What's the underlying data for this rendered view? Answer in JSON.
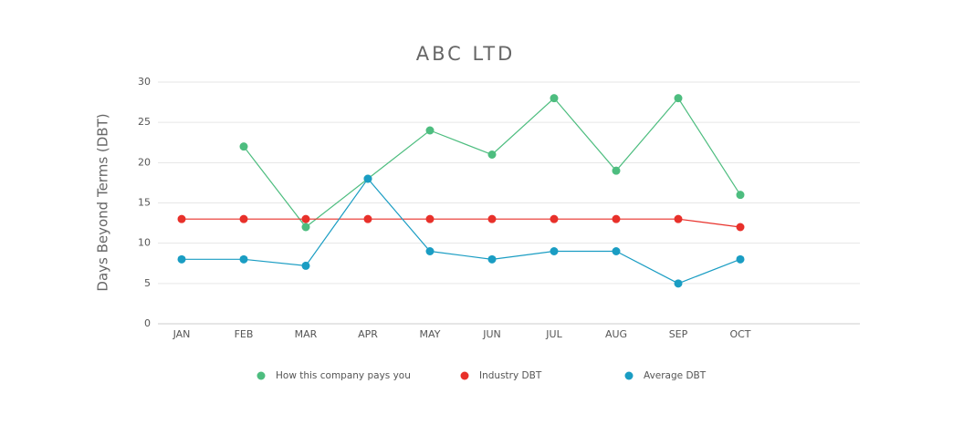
{
  "chart_data": {
    "type": "line",
    "title": "ABC LTD",
    "y_label": "Days Beyond Terms (DBT)",
    "categories": [
      "JAN",
      "FEB",
      "MAR",
      "APR",
      "MAY",
      "JUN",
      "JUL",
      "AUG",
      "SEP",
      "OCT"
    ],
    "series": [
      {
        "name": "How this company pays you",
        "color": "#4dbd7f",
        "values": [
          null,
          22,
          12,
          18,
          24,
          21,
          28,
          19,
          28,
          16
        ]
      },
      {
        "name": "Industry DBT",
        "color": "#e8302a",
        "values": [
          13,
          13,
          13,
          13,
          13,
          13,
          13,
          13,
          13,
          12
        ]
      },
      {
        "name": "Average DBT",
        "color": "#1a9dc3",
        "values": [
          8,
          8,
          7.2,
          18,
          9,
          8,
          9,
          9,
          5,
          8
        ]
      }
    ],
    "ylim": [
      0,
      30
    ],
    "yticks": [
      0,
      5,
      10,
      15,
      20,
      25,
      30
    ],
    "grid": true
  }
}
